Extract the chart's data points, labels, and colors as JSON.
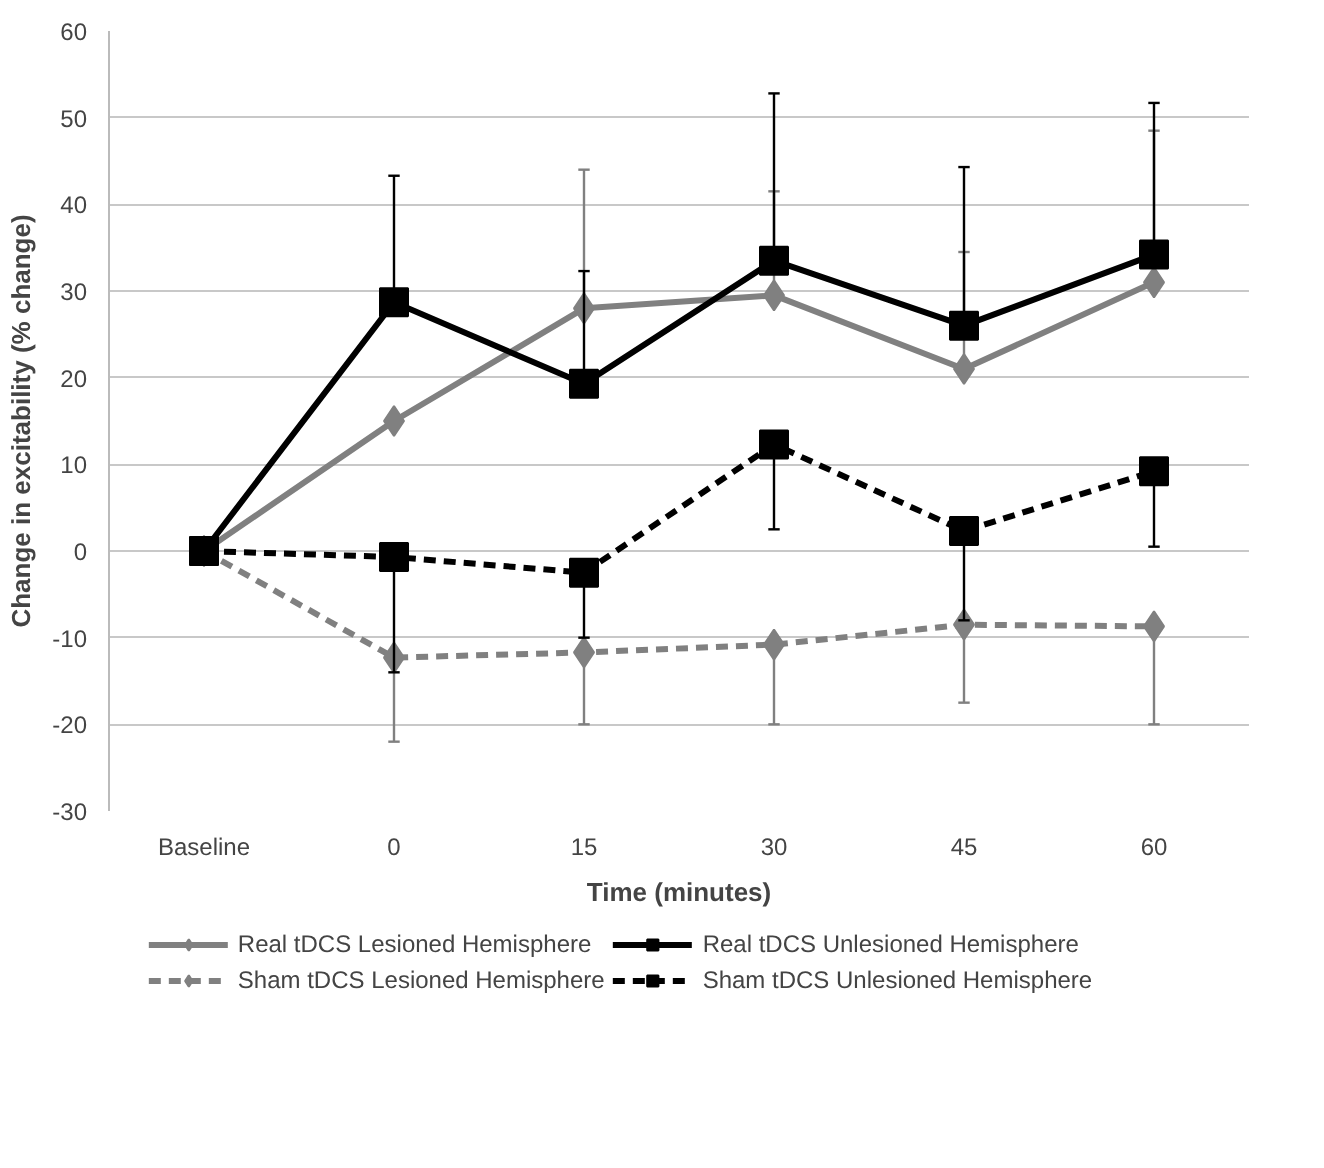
{
  "chart_data": {
    "type": "line",
    "xlabel": "Time (minutes)",
    "ylabel": "Change in excitability (% change)",
    "categories": [
      "Baseline",
      "0",
      "15",
      "30",
      "45",
      "60"
    ],
    "ylim": [
      -30,
      60
    ],
    "yticks": [
      -30,
      -20,
      -10,
      0,
      10,
      20,
      30,
      40,
      50,
      60
    ],
    "grid": "y",
    "legend": "bottom",
    "series": [
      {
        "name": "Real tDCS Lesioned Hemisphere",
        "color": "#808080",
        "marker": "diamond",
        "line_style": "solid",
        "values": [
          0,
          15,
          28,
          29.5,
          21,
          31
        ],
        "errors": [
          null,
          null,
          [
            28,
            44
          ],
          [
            29.5,
            41.5
          ],
          [
            21,
            34.5
          ],
          [
            31,
            48.5
          ]
        ]
      },
      {
        "name": "Real tDCS Unlesioned Hemisphere",
        "color": "#000000",
        "marker": "square",
        "line_style": "solid",
        "values": [
          0,
          28.7,
          19.3,
          33.5,
          26,
          34.2
        ],
        "errors": [
          null,
          [
            28.7,
            43.3
          ],
          [
            19.3,
            32.3
          ],
          [
            33.5,
            52.8
          ],
          [
            26,
            44.3
          ],
          [
            34.2,
            51.7
          ]
        ]
      },
      {
        "name": "Sham tDCS Lesioned Hemisphere",
        "color": "#808080",
        "marker": "diamond",
        "line_style": "dashed",
        "values": [
          0,
          -12.3,
          -11.7,
          -10.8,
          -8.5,
          -8.7
        ],
        "errors": [
          null,
          [
            -22,
            -12.3
          ],
          [
            -20,
            -11.7
          ],
          [
            -20,
            -10.8
          ],
          [
            -17.5,
            -8.5
          ],
          [
            -20,
            -8.7
          ]
        ]
      },
      {
        "name": "Sham tDCS Unlesioned Hemisphere",
        "color": "#000000",
        "marker": "square",
        "line_style": "dashed",
        "values": [
          0,
          -0.7,
          -2.5,
          12.3,
          2.3,
          9.2
        ],
        "errors": [
          null,
          [
            -14,
            -0.7
          ],
          [
            -10,
            -2.5
          ],
          [
            2.5,
            12.3
          ],
          [
            -8,
            2.3
          ],
          [
            0.5,
            9.2
          ]
        ]
      }
    ]
  }
}
